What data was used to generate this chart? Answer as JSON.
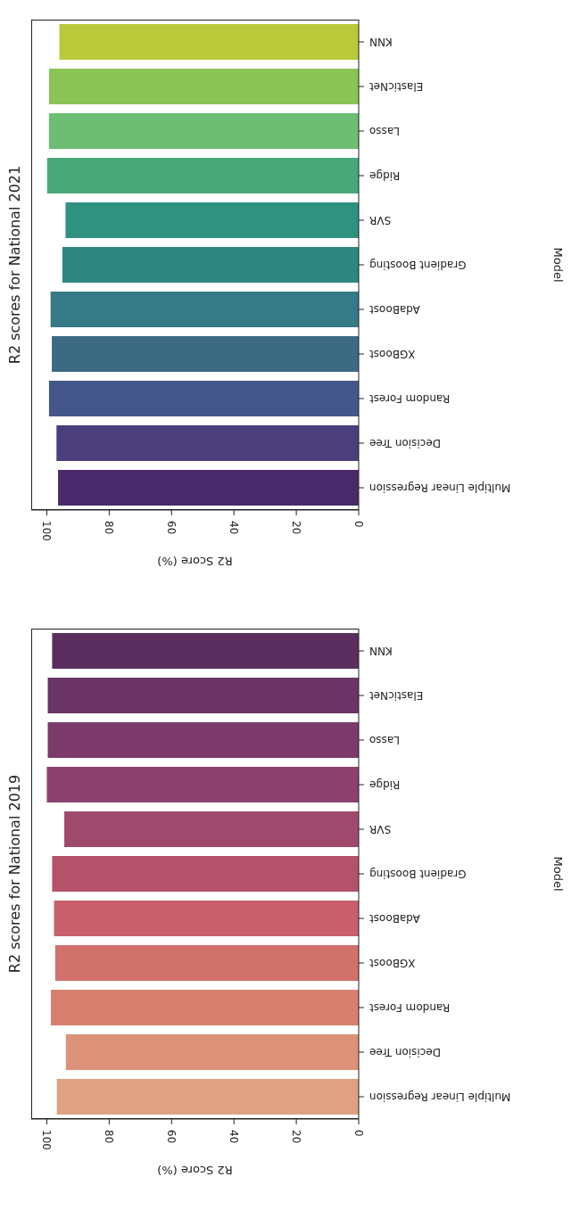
{
  "chart_data": [
    {
      "type": "bar",
      "orientation": "horizontal",
      "title": "R2 scores for National 2021",
      "ylabel": "Model",
      "xlabel": "R2 Score (%)",
      "categories": [
        "KNN",
        "ElasticNet",
        "Lasso",
        "Ridge",
        "SVR",
        "Gradient Boosting",
        "AdaBoost",
        "XGBoost",
        "Random Forest",
        "Decision Tree",
        "Multiple Linear Regression"
      ],
      "values": [
        96.0,
        99.3,
        99.3,
        99.9,
        94.0,
        95.0,
        98.8,
        98.4,
        99.3,
        96.9,
        96.4
      ],
      "colors": [
        "#b8c93a",
        "#8cc357",
        "#6dbd72",
        "#49a87a",
        "#2f9180",
        "#2e8780",
        "#357a86",
        "#3d6a83",
        "#45578a",
        "#4a3f7a",
        "#482a6b"
      ],
      "xlim": [
        105,
        0
      ],
      "xticks": [
        100,
        80,
        60,
        40,
        20,
        0
      ],
      "grid": false
    },
    {
      "type": "bar",
      "orientation": "horizontal",
      "title": "R2 scores for National 2019",
      "ylabel": "Model",
      "xlabel": "R2 Score (%)",
      "categories": [
        "KNN",
        "ElasticNet",
        "Lasso",
        "Ridge",
        "SVR",
        "Gradient Boosting",
        "AdaBoost",
        "XGBoost",
        "Random Forest",
        "Decision Tree",
        "Multiple Linear Regression"
      ],
      "values": [
        98.3,
        99.7,
        99.7,
        100.0,
        94.4,
        98.3,
        97.7,
        97.3,
        98.7,
        93.9,
        96.8
      ],
      "colors": [
        "#5a2e5e",
        "#6a3465",
        "#7b3a69",
        "#8c426c",
        "#9f4a6d",
        "#b5526b",
        "#c85f6a",
        "#d1716b",
        "#d88070",
        "#dc9278",
        "#dea184"
      ],
      "xlim": [
        105,
        0
      ],
      "xticks": [
        100,
        80,
        60,
        40,
        20,
        0
      ],
      "grid": false
    }
  ]
}
